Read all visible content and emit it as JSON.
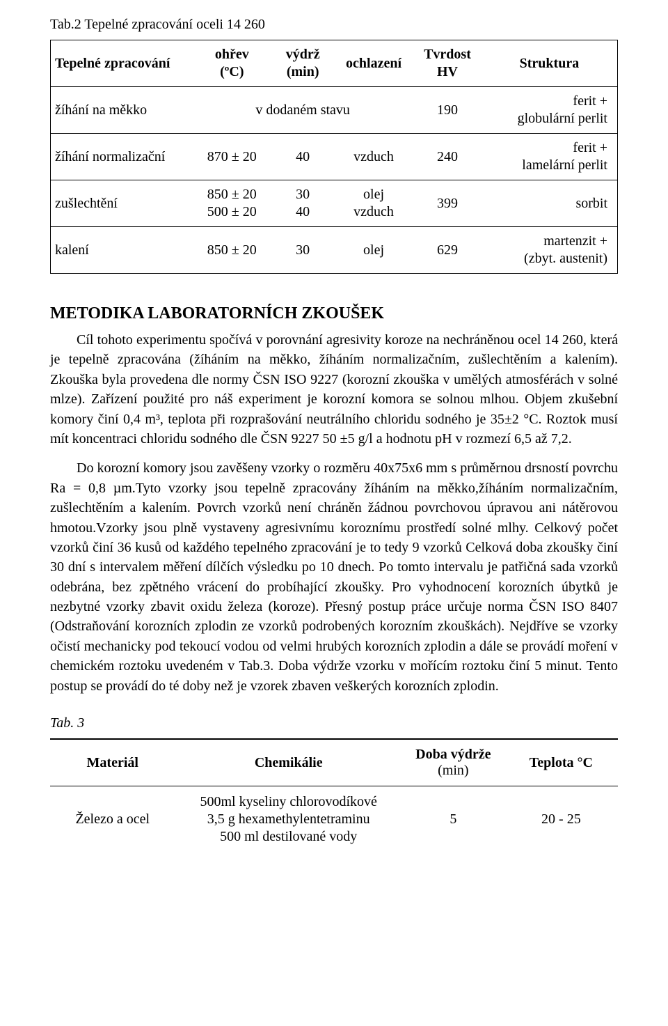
{
  "table1": {
    "caption": "Tab.2  Tepelné zpracování oceli 14 260",
    "columns": [
      "Tepelné zpracování",
      "ohřev\n(ºC)",
      "výdrž\n(min)",
      "ochlazení",
      "Tvrdost\nHV",
      "Struktura"
    ],
    "rows": [
      {
        "process": "žíhání na měkko",
        "heat_span3": "v dodaném stavu",
        "hv": "190",
        "structure": "ferit +\nglobulární perlit"
      },
      {
        "process": "žíhání normalizační",
        "heat": "870 ± 20",
        "hold": "40",
        "cool": "vzduch",
        "hv": "240",
        "structure": "ferit +\nlamelární perlit"
      },
      {
        "process": "zušlechtění",
        "heat": "850 ± 20\n500 ± 20",
        "hold": "30\n40",
        "cool": "olej\nvzduch",
        "hv": "399",
        "structure": "sorbit"
      },
      {
        "process": "kalení",
        "heat": "850 ± 20",
        "hold": "30",
        "cool": "olej",
        "hv": "629",
        "structure": "martenzit +\n(zbyt. austenit)"
      }
    ],
    "col_widths_pct": [
      25,
      14,
      11,
      14,
      12,
      24
    ]
  },
  "section_heading": "METODIKA LABORATORNÍCH ZKOUŠEK",
  "para1": "Cíl tohoto experimentu spočívá v porovnání agresivity koroze na nechráněnou ocel 14 260, která je tepelně zpracována (žíháním na měkko, žíháním normalizačním, zušlechtěním a kalením). Zkouška byla provedena dle normy ČSN ISO 9227 (korozní zkouška v umělých atmosférách v solné mlze). Zařízení použité pro náš experiment je korozní komora se solnou mlhou. Objem zkušební komory činí 0,4 m³, teplota při rozprašování neutrálního chloridu sodného je 35±2 °C. Roztok musí mít koncentraci chloridu sodného dle ČSN 9227  50 ±5 g/l a hodnotu pH v rozmezí 6,5 až 7,2.",
  "para2": "Do korozní komory jsou zavěšeny vzorky o rozměru 40x75x6 mm s průměrnou drsností povrchu Ra = 0,8 µm.Tyto vzorky jsou tepelně zpracovány žíháním na měkko,žíháním normalizačním, zušlechtěním a kalením. Povrch vzorků není chráněn žádnou povrchovou úpravou ani nátěrovou hmotou.Vzorky jsou plně vystaveny agresivnímu koroznímu prostředí solné mlhy. Celkový počet vzorků činí 36 kusů od každého tepelného zpracování je to tedy 9 vzorků Celková doba zkoušky činí 30 dní s intervalem měření dílčích výsledku po 10 dnech. Po tomto intervalu je patřičná sada vzorků odebrána, bez zpětného vrácení do probíhající zkoušky. Pro vyhodnocení korozních úbytků je nezbytné vzorky zbavit oxidu železa (koroze). Přesný postup práce určuje norma ČSN ISO 8407 (Odstraňování korozních zplodin ze vzorků podrobených korozním zkouškách). Nejdříve se vzorky očistí mechanicky pod tekoucí vodou od velmi hrubých korozních zplodin a dále se provádí moření v chemickém roztoku uvedeném v Tab.3. Doba výdrže vzorku v mořícím roztoku činí 5 minut. Tento postup se provádí do té doby než je vzorek zbaven veškerých korozních zplodin.",
  "table3": {
    "caption": "Tab. 3",
    "columns": {
      "material": "Materiál",
      "chemical": "Chemikálie",
      "hold": "Doba výdrže",
      "hold_unit": "(min)",
      "temp": "Teplota °C"
    },
    "row": {
      "material": "Železo a ocel",
      "chem_lines": [
        "500ml kyseliny chlorovodíkové",
        "3,5 g hexamethylentetraminu",
        "500 ml destilované vody"
      ],
      "hold": "5",
      "temp": "20 - 25"
    },
    "col_widths_pct": [
      22,
      40,
      18,
      20
    ]
  }
}
